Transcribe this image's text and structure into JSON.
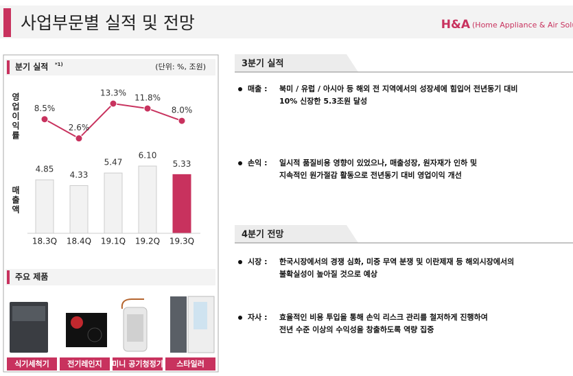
{
  "header": {
    "title": "사업부문별 실적 및 전망",
    "brand": "H&A",
    "brand_sub": "(Home Appliance & Air Solution)"
  },
  "panel": {
    "title": "분기 실적",
    "note": "*1)",
    "unit": "(단위: %, 조원)"
  },
  "chart_data": {
    "type": "bar-line",
    "categories": [
      "18.3Q",
      "18.4Q",
      "19.1Q",
      "19.2Q",
      "19.3Q"
    ],
    "series": [
      {
        "name": "영업이익률",
        "kind": "line",
        "color": "#c8325e",
        "values": [
          8.5,
          2.6,
          13.3,
          11.8,
          8.0
        ],
        "value_labels": [
          "8.5%",
          "2.6%",
          "13.3%",
          "11.8%",
          "8.0%"
        ]
      },
      {
        "name": "매출액",
        "kind": "bar",
        "colors": [
          "#f2f2f2",
          "#f2f2f2",
          "#f2f2f2",
          "#f2f2f2",
          "#c8325e"
        ],
        "values": [
          4.85,
          4.33,
          5.47,
          6.1,
          5.33
        ],
        "value_labels": [
          "4.85",
          "4.33",
          "5.47",
          "6.10",
          "5.33"
        ]
      }
    ]
  },
  "products": {
    "title": "주요 제품",
    "items": [
      "식기세척기",
      "전기레인지",
      "미니 공기청정기",
      "스타일러"
    ]
  },
  "sections": [
    {
      "title": "3분기 실적",
      "items": [
        {
          "label": "매출 :",
          "lines": [
            "북미 / 유럽 / 아시아 등 해외 전 지역에서의 성장세에 힘입어 전년동기 대비",
            "10% 신장한 5.3조원 달성"
          ]
        },
        {
          "label": "손익 :",
          "lines": [
            "일시적 품질비용 영향이 있었으나, 매출성장, 원자재가 인하 및",
            "지속적인 원가절감 활동으로 전년동기 대비 영업이익 개선"
          ]
        }
      ]
    },
    {
      "title": "4분기 전망",
      "items": [
        {
          "label": "시장 :",
          "lines": [
            "한국시장에서의 경쟁 심화, 미중 무역 분쟁 및 이란제재 등 해외시장에서의",
            "불확실성이 높아질 것으로 예상"
          ]
        },
        {
          "label": "자사 :",
          "lines": [
            "효율적인 비용 투입을 통해 손익 리스크 관리를 철저하게 진행하여",
            "전년 수준 이상의 수익성을 창출하도록 역량 집중"
          ]
        }
      ]
    }
  ]
}
